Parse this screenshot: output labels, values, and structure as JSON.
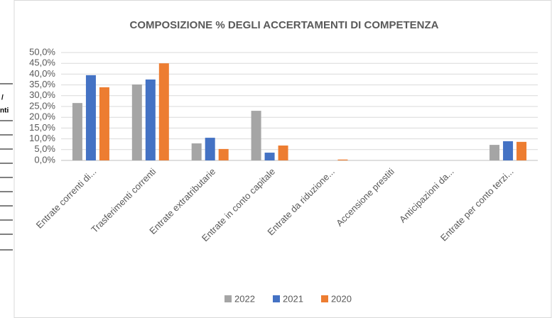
{
  "side_fragment": [
    "/",
    "nti"
  ],
  "chart_data": {
    "type": "bar",
    "title": "COMPOSIZIONE % DEGLI ACCERTAMENTI DI COMPETENZA",
    "categories": [
      "Entrate correnti di...",
      "Trasferimenti correnti",
      "Entrate extratributarie",
      "Entrate in conto capitale",
      "Entrate da riduzione...",
      "Accensione prestiti",
      "Anticipazioni da...",
      "Entrate per conto terzi..."
    ],
    "series": [
      {
        "name": "2022",
        "color": "#a5a5a5",
        "values": [
          26.6,
          35.2,
          7.9,
          23.0,
          0,
          0,
          0,
          7.2
        ]
      },
      {
        "name": "2021",
        "color": "#4472c4",
        "values": [
          39.5,
          37.5,
          10.5,
          3.6,
          0,
          0,
          0,
          8.9
        ]
      },
      {
        "name": "2020",
        "color": "#ed7d31",
        "values": [
          33.9,
          45.0,
          5.3,
          6.9,
          0.4,
          0,
          0,
          8.6
        ]
      }
    ],
    "ylim": [
      0,
      50
    ],
    "yticks": [
      {
        "value": 0,
        "label": "0,0%"
      },
      {
        "value": 5,
        "label": "5,0%"
      },
      {
        "value": 10,
        "label": "10,0%"
      },
      {
        "value": 15,
        "label": "15,0%"
      },
      {
        "value": 20,
        "label": "20,0%"
      },
      {
        "value": 25,
        "label": "25,0%"
      },
      {
        "value": 30,
        "label": "30,0%"
      },
      {
        "value": 35,
        "label": "35,0%"
      },
      {
        "value": 40,
        "label": "40,0%"
      },
      {
        "value": 45,
        "label": "45,0%"
      },
      {
        "value": 50,
        "label": "50,0%"
      }
    ],
    "grid": true,
    "legend": "bottom"
  }
}
